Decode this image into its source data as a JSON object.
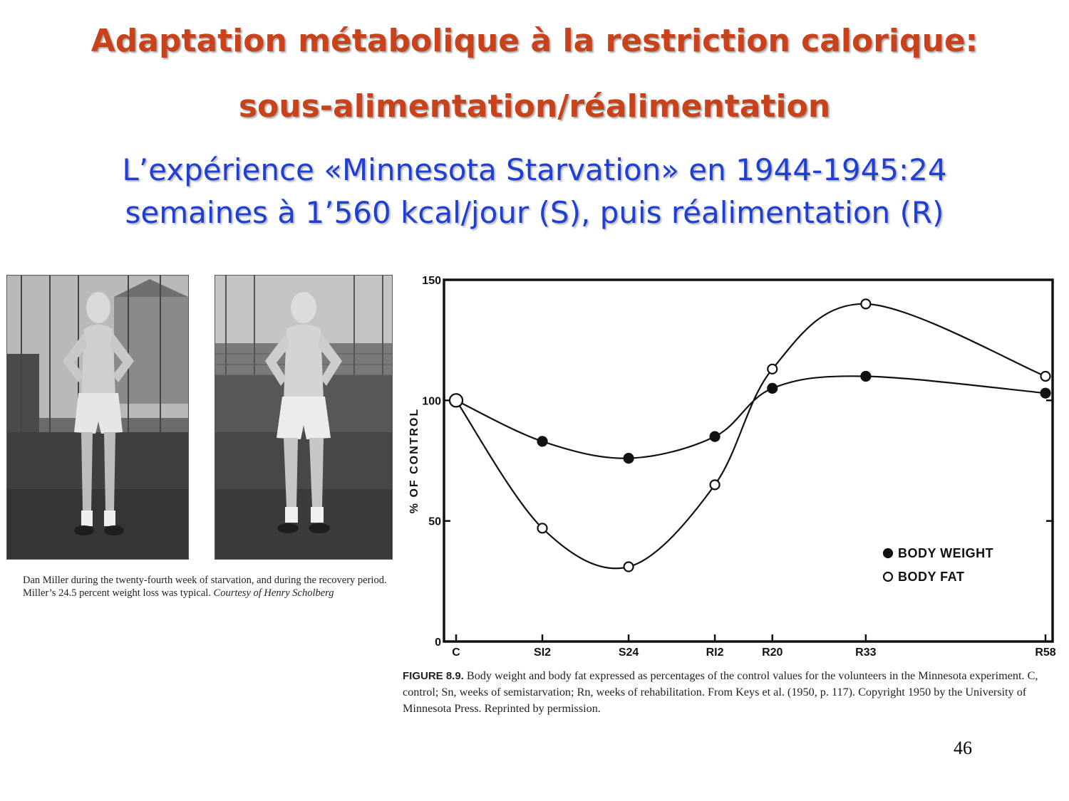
{
  "slide": {
    "title_line1": "Adaptation métabolique à la restriction calorique:",
    "title_line2": "sous-alimentation/réalimentation",
    "subtitle_line1": "L’expérience «Minnesota Starvation» en 1944-1945:24",
    "subtitle_line2": "semaines à 1’560 kcal/jour (S), puis réalimentation (R)",
    "page_number": "46",
    "colors": {
      "title": "#c8431b",
      "subtitle": "#1f3fd1"
    }
  },
  "photos": {
    "caption_main": "Dan Miller during the twenty-fourth week of starvation, and during the recovery period. Miller’s 24.5 percent weight loss was typical. ",
    "caption_credit": "Courtesy of Henry Scholberg"
  },
  "figure": {
    "label": "FIGURE 8.9.",
    "caption": "Body weight and body fat expressed as percentages of the control values for the volunteers in the Minnesota experiment. C, control; Sn, weeks of semistarvation; Rn, weeks of rehabilitation. From Keys et al. (1950, p. 117). Copyright 1950 by the University of Minnesota Press. Reprinted by permission."
  },
  "chart_data": {
    "type": "line",
    "title": "",
    "xlabel": "",
    "ylabel": "% OF CONTROL",
    "categories": [
      "C",
      "SI2",
      "S24",
      "RI2",
      "R20",
      "R33",
      "R58"
    ],
    "x": [
      0,
      12,
      24,
      36,
      44,
      57,
      82
    ],
    "xlim": [
      0,
      82
    ],
    "ylim": [
      0,
      150
    ],
    "yticks": [
      0,
      50,
      100,
      150
    ],
    "grid": false,
    "legend_position": "bottom-right",
    "series": [
      {
        "name": "BODY WEIGHT",
        "marker": "filled-circle",
        "values": [
          100,
          83,
          76,
          85,
          105,
          110,
          103
        ]
      },
      {
        "name": "BODY FAT",
        "marker": "open-circle",
        "values": [
          100,
          47,
          31,
          65,
          113,
          140,
          110
        ]
      }
    ]
  }
}
